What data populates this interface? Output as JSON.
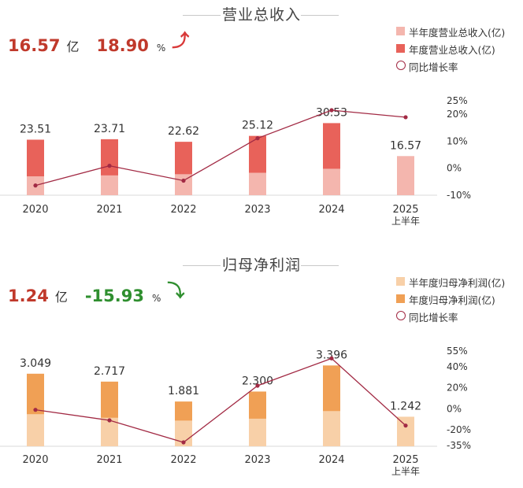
{
  "chart_data": [
    {
      "type": "bar",
      "title": "营业总收入",
      "summary": {
        "value": "16.57",
        "unit": "亿",
        "growth": "18.90",
        "pct_sign": "%",
        "direction": "up",
        "arrow": "⤴"
      },
      "categories": [
        {
          "year": "2020",
          "sub": ""
        },
        {
          "year": "2021",
          "sub": ""
        },
        {
          "year": "2022",
          "sub": ""
        },
        {
          "year": "2023",
          "sub": ""
        },
        {
          "year": "2024",
          "sub": ""
        },
        {
          "year": "2025",
          "sub": "上半年"
        }
      ],
      "series": [
        {
          "name": "半年度营业总收入(亿)",
          "role": "half",
          "color": "#f4b6ae",
          "values": [
            8.0,
            8.4,
            8.9,
            9.5,
            11.2,
            16.57
          ]
        },
        {
          "name": "年度营业总收入(亿)",
          "role": "annual",
          "color": "#e8625a",
          "values": [
            23.51,
            23.71,
            22.62,
            25.12,
            30.53,
            null
          ]
        },
        {
          "name": "同比增长率",
          "role": "growth",
          "color": "#a22a44",
          "values": [
            -6.4,
            0.9,
            -4.6,
            11.1,
            21.5,
            18.9
          ]
        }
      ],
      "bar_labels": [
        "23.51",
        "23.71",
        "22.62",
        "25.12",
        "30.53",
        "16.57"
      ],
      "ylim": [
        0,
        40
      ],
      "y2lim": [
        -10,
        25
      ],
      "y2ticks": [
        {
          "v": 25,
          "label": "25%"
        },
        {
          "v": 20,
          "label": "20%"
        },
        {
          "v": 10,
          "label": "10%"
        },
        {
          "v": 0,
          "label": "0%"
        },
        {
          "v": -10,
          "label": "-10%"
        }
      ]
    },
    {
      "type": "bar",
      "title": "归母净利润",
      "summary": {
        "value": "1.24",
        "unit": "亿",
        "growth": "-15.93",
        "pct_sign": "%",
        "direction": "down",
        "arrow": "⤵"
      },
      "categories": [
        {
          "year": "2020",
          "sub": ""
        },
        {
          "year": "2021",
          "sub": ""
        },
        {
          "year": "2022",
          "sub": ""
        },
        {
          "year": "2023",
          "sub": ""
        },
        {
          "year": "2024",
          "sub": ""
        },
        {
          "year": "2025",
          "sub": "上半年"
        }
      ],
      "series": [
        {
          "name": "半年度归母净利润(亿)",
          "role": "half",
          "color": "#f8d0a8",
          "values": [
            1.35,
            1.2,
            1.08,
            1.16,
            1.48,
            1.242
          ]
        },
        {
          "name": "年度归母净利润(亿)",
          "role": "annual",
          "color": "#f0a055",
          "values": [
            3.049,
            2.717,
            1.881,
            2.3,
            3.396,
            null
          ]
        },
        {
          "name": "同比增长率",
          "role": "growth",
          "color": "#a22a44",
          "values": [
            -1,
            -11,
            -32,
            22,
            48,
            -16
          ]
        }
      ],
      "bar_labels": [
        "3.049",
        "2.717",
        "1.881",
        "2.300",
        "3.396",
        "1.242"
      ],
      "ylim": [
        0,
        4.2
      ],
      "y2lim": [
        -35,
        55
      ],
      "y2ticks": [
        {
          "v": 55,
          "label": "55%"
        },
        {
          "v": 40,
          "label": "40%"
        },
        {
          "v": 20,
          "label": "20%"
        },
        {
          "v": 0,
          "label": "0%"
        },
        {
          "v": -20,
          "label": "-20%"
        },
        {
          "v": -35,
          "label": "-35%"
        }
      ]
    }
  ],
  "colors": {
    "up": "#d93a3a",
    "down": "#2f8f2f",
    "value": "#c0392b"
  }
}
